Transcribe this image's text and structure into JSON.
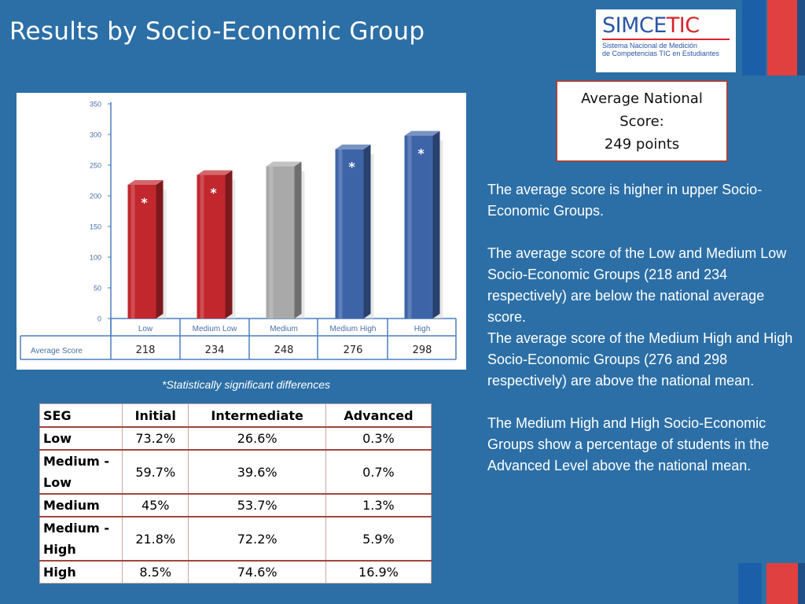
{
  "page": {
    "title": "Results by Socio-Economic Group"
  },
  "logo": {
    "word_main": "SIMCE",
    "word_accent": "TIC",
    "subtitle_line1": "Sistema Nacional de Medición",
    "subtitle_line2": "de Competencias TIC en Estudiantes"
  },
  "average_box": {
    "line1": "Average National",
    "line2": "Score:",
    "line3": "249 points"
  },
  "chart_data": {
    "type": "bar",
    "categories": [
      "Low",
      "Medium Low",
      "Medium",
      "Medium High",
      "High"
    ],
    "series": [
      {
        "name": "Average Score",
        "values": [
          218,
          234,
          248,
          276,
          298
        ]
      }
    ],
    "value_labels": [
      "218",
      "234",
      "248",
      "276",
      "298"
    ],
    "significant": [
      true,
      true,
      false,
      true,
      true
    ],
    "significance_marker": "*",
    "ylim": [
      0,
      350
    ],
    "yticks": [
      0,
      50,
      100,
      150,
      200,
      250,
      300,
      350
    ],
    "bar_colors": [
      "#c1272d",
      "#c1272d",
      "#a9a9a9",
      "#3e64a8",
      "#3e64a8"
    ],
    "row_label": "Average Score",
    "grid": false,
    "legend": "table-below"
  },
  "chart_note": "*Statistically significant differences",
  "table": {
    "headers": [
      "SEG",
      "Initial",
      "Intermediate",
      "Advanced"
    ],
    "rows": [
      {
        "label_line1": "Low",
        "label_line2": "",
        "initial": "73.2%",
        "intermediate": "26.6%",
        "advanced": "0.3%"
      },
      {
        "label_line1": "Medium -",
        "label_line2": "Low",
        "initial": "59.7%",
        "intermediate": "39.6%",
        "advanced": "0.7%"
      },
      {
        "label_line1": "Medium",
        "label_line2": "",
        "initial": "45%",
        "intermediate": "53.7%",
        "advanced": "1.3%"
      },
      {
        "label_line1": "Medium -",
        "label_line2": "High",
        "initial": "21.8%",
        "intermediate": "72.2%",
        "advanced": "5.9%"
      },
      {
        "label_line1": "High",
        "label_line2": "",
        "initial": "8.5%",
        "intermediate": "74.6%",
        "advanced": "16.9%"
      }
    ]
  },
  "notes": {
    "p1": "The average score is higher in upper Socio-Economic Groups.",
    "p2": "The average score of the Low and Medium Low Socio-Economic Groups (218 and 234 respectively) are below the national average score.",
    "p3": "The average score of the Medium High and High Socio-Economic Groups (276 and 298 respectively) are above the national mean.",
    "p4": "The Medium High and High Socio-Economic Groups show a percentage of students in the Advanced Level above the national mean."
  },
  "colors": {
    "background": "#2c6fa6",
    "accent_red": "#c1272d",
    "accent_blue": "#3e64a8",
    "neutral": "#a9a9a9"
  }
}
